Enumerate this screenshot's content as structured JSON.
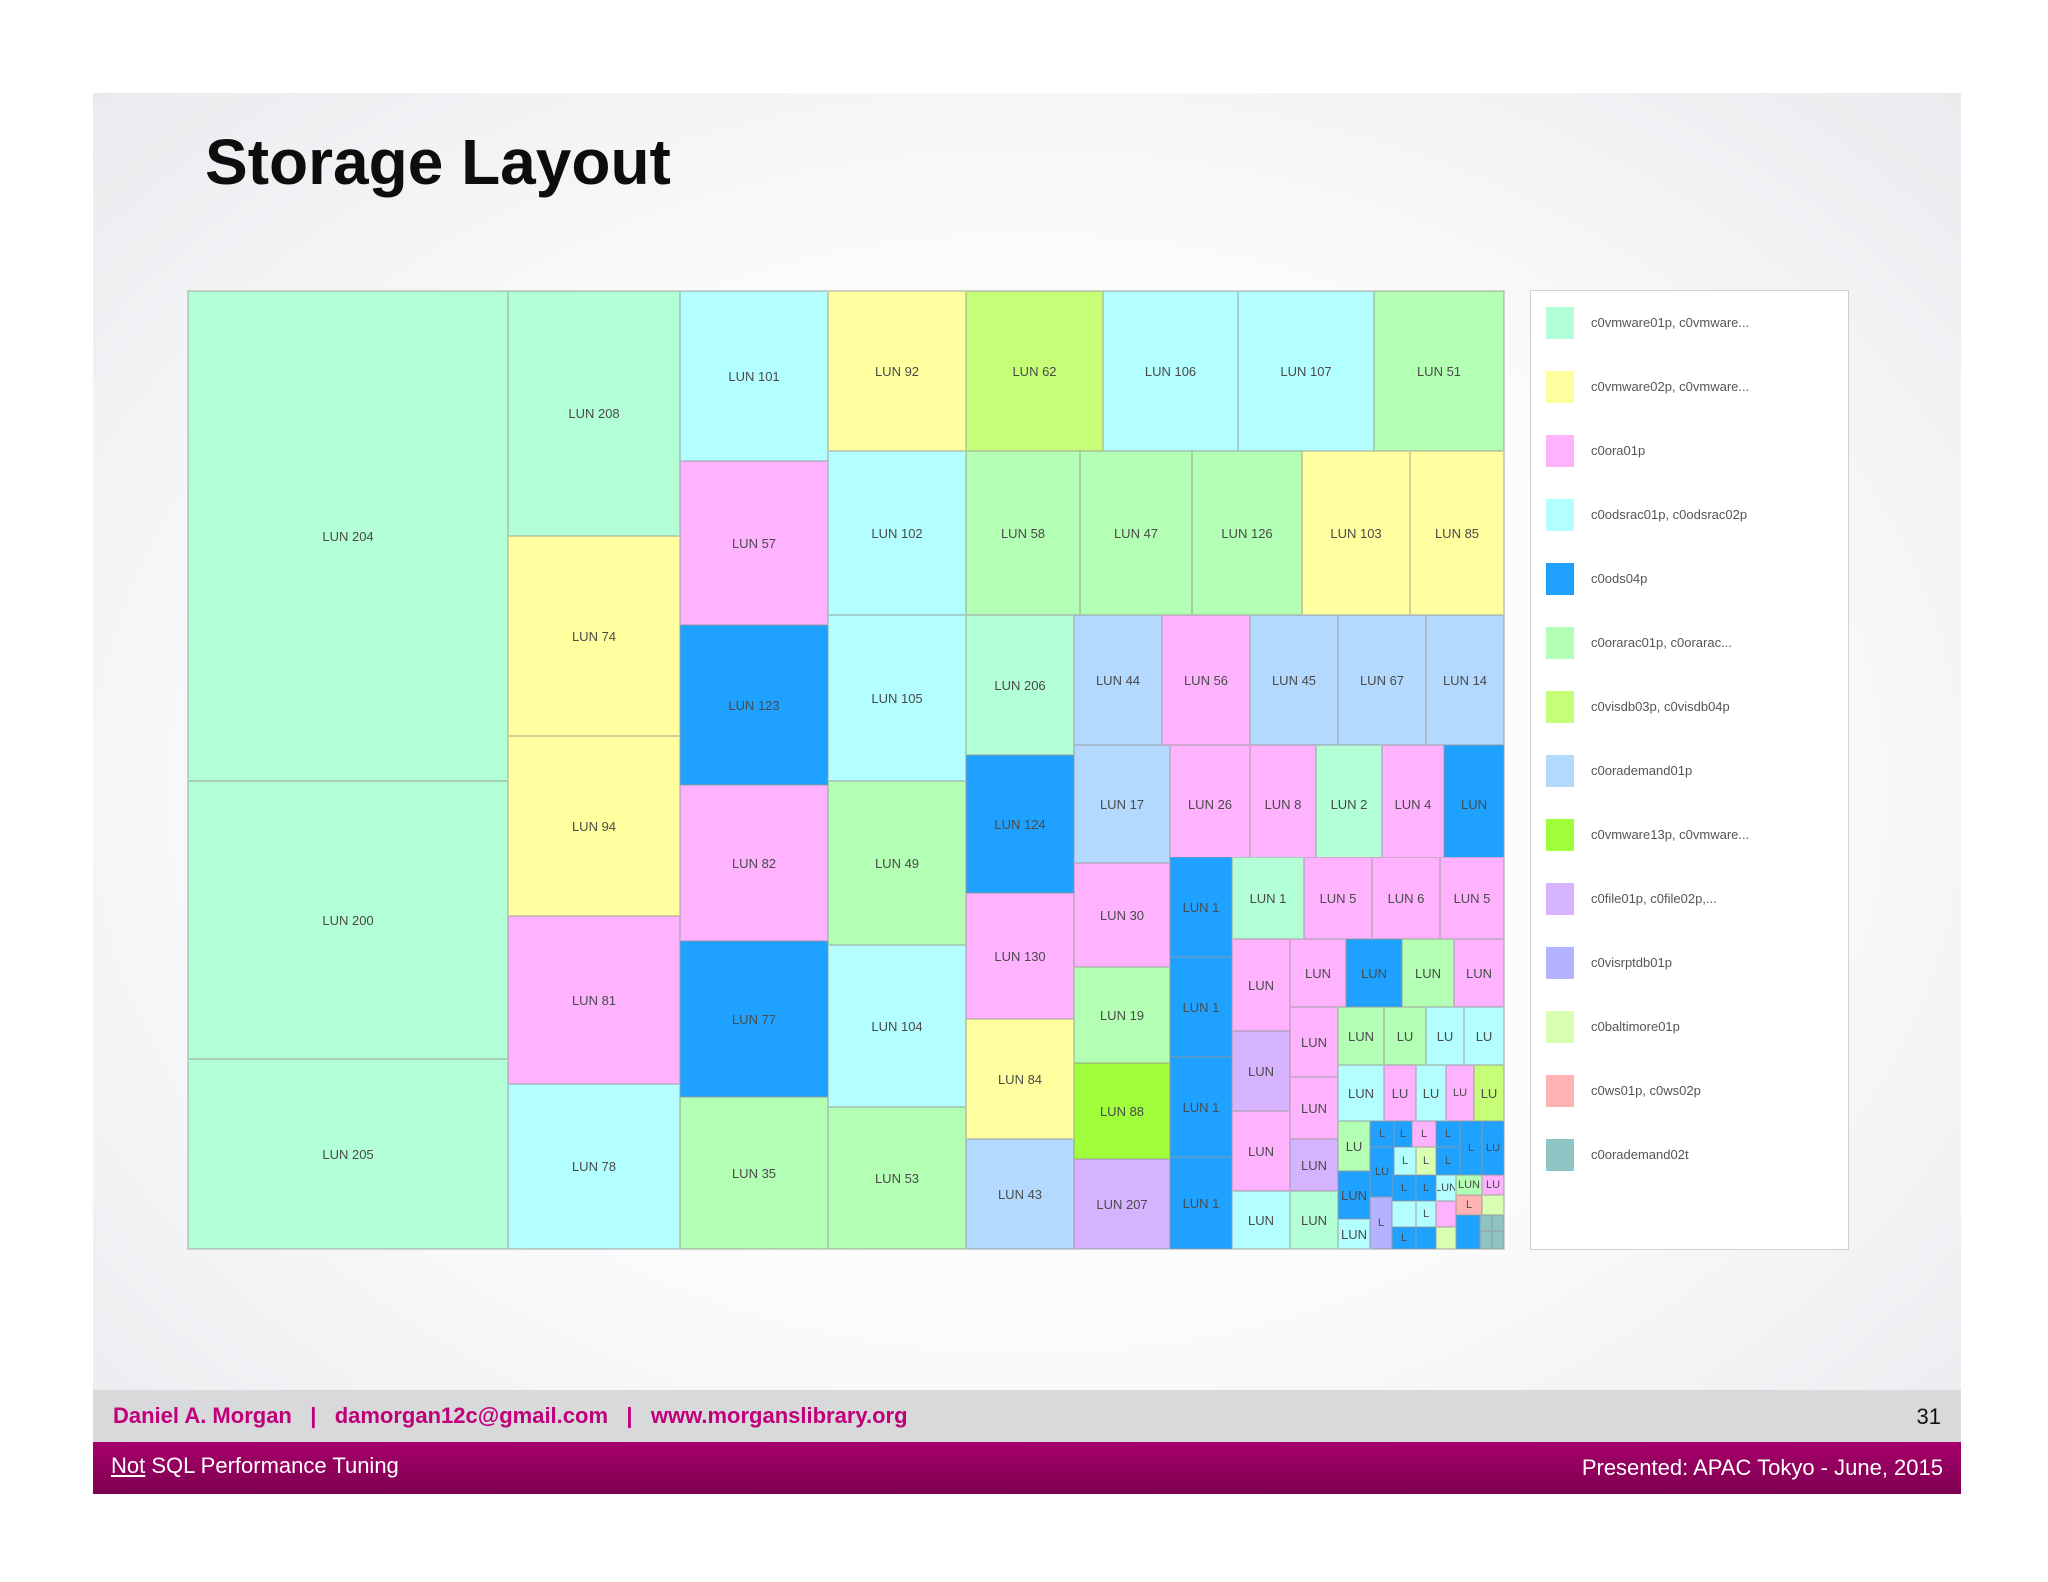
{
  "slide": {
    "title": "Storage Layout",
    "footer": {
      "author_line": "Daniel A. Morgan   |   damorgan12c@gmail.com   |   www.morganslibrary.org",
      "page_number": "31",
      "deck_title_prefix": "Not",
      "deck_title_rest": " SQL Performance Tuning",
      "presented": "Presented: APAC Tokyo  - June, 2015"
    }
  },
  "colors": {
    "c0vmware01p": "#b3ffd6",
    "c0vmware02p": "#ffff9f",
    "c0ora01p": "#ffb3ff",
    "c0odsrac": "#b3ffff",
    "c0ods04p": "#1fa2ff",
    "c0orarac": "#b3ffb3",
    "c0visdb": "#c6ff77",
    "c0orademand01p": "#b3d9ff",
    "c0vmware13p": "#a0ff3a",
    "c0file": "#d6b3ff",
    "c0visrptdb01p": "#b3b3ff",
    "c0baltimore01p": "#d9ffb3",
    "c0ws": "#ffb3b3",
    "c0orademand02t": "#8fc4c4"
  },
  "chart_data": {
    "type": "treemap",
    "title": "Storage Layout",
    "legend_position": "right",
    "legend": [
      {
        "label": "c0vmware01p, c0vmware...",
        "key": "c0vmware01p"
      },
      {
        "label": "c0vmware02p, c0vmware...",
        "key": "c0vmware02p"
      },
      {
        "label": "c0ora01p",
        "key": "c0ora01p"
      },
      {
        "label": "c0odsrac01p, c0odsrac02p",
        "key": "c0odsrac"
      },
      {
        "label": "c0ods04p",
        "key": "c0ods04p"
      },
      {
        "label": "c0orarac01p, c0orarac...",
        "key": "c0orarac"
      },
      {
        "label": "c0visdb03p, c0visdb04p",
        "key": "c0visdb"
      },
      {
        "label": "c0orademand01p",
        "key": "c0orademand01p"
      },
      {
        "label": "c0vmware13p, c0vmware...",
        "key": "c0vmware13p"
      },
      {
        "label": "c0file01p, c0file02p,...",
        "key": "c0file"
      },
      {
        "label": "c0visrptdb01p",
        "key": "c0visrptdb01p"
      },
      {
        "label": "c0baltimore01p",
        "key": "c0baltimore01p"
      },
      {
        "label": "c0ws01p, c0ws02p",
        "key": "c0ws"
      },
      {
        "label": "c0orademand02t",
        "key": "c0orademand02t"
      }
    ],
    "tiles": [
      {
        "label": "LUN 204",
        "group": "c0vmware01p"
      },
      {
        "label": "LUN 200",
        "group": "c0vmware01p"
      },
      {
        "label": "LUN 205",
        "group": "c0vmware01p"
      },
      {
        "label": "LUN 208",
        "group": "c0vmware01p"
      },
      {
        "label": "LUN 74",
        "group": "c0vmware02p"
      },
      {
        "label": "LUN 94",
        "group": "c0vmware02p"
      },
      {
        "label": "LUN 81",
        "group": "c0ora01p"
      },
      {
        "label": "LUN 78",
        "group": "c0odsrac"
      },
      {
        "label": "LUN 101",
        "group": "c0odsrac"
      },
      {
        "label": "LUN 57",
        "group": "c0ora01p"
      },
      {
        "label": "LUN 123",
        "group": "c0ods04p"
      },
      {
        "label": "LUN 82",
        "group": "c0ora01p"
      },
      {
        "label": "LUN 77",
        "group": "c0ods04p"
      },
      {
        "label": "LUN 35",
        "group": "c0orarac"
      },
      {
        "label": "LUN 92",
        "group": "c0vmware02p"
      },
      {
        "label": "LUN 102",
        "group": "c0odsrac"
      },
      {
        "label": "LUN 105",
        "group": "c0odsrac"
      },
      {
        "label": "LUN 49",
        "group": "c0orarac"
      },
      {
        "label": "LUN 104",
        "group": "c0odsrac"
      },
      {
        "label": "LUN 53",
        "group": "c0orarac"
      },
      {
        "label": "LUN 62",
        "group": "c0visdb"
      },
      {
        "label": "LUN 106",
        "group": "c0odsrac"
      },
      {
        "label": "LUN 107",
        "group": "c0odsrac"
      },
      {
        "label": "LUN 51",
        "group": "c0orarac"
      },
      {
        "label": "LUN 58",
        "group": "c0orarac"
      },
      {
        "label": "LUN 47",
        "group": "c0orarac"
      },
      {
        "label": "LUN 126",
        "group": "c0orarac"
      },
      {
        "label": "LUN 103",
        "group": "c0vmware02p"
      },
      {
        "label": "LUN 85",
        "group": "c0vmware02p"
      },
      {
        "label": "LUN 206",
        "group": "c0vmware01p"
      },
      {
        "label": "LUN 124",
        "group": "c0ods04p"
      },
      {
        "label": "LUN 130",
        "group": "c0ora01p"
      },
      {
        "label": "LUN 84",
        "group": "c0vmware02p"
      },
      {
        "label": "LUN 43",
        "group": "c0orademand01p"
      },
      {
        "label": "LUN 44",
        "group": "c0orademand01p"
      },
      {
        "label": "LUN 56",
        "group": "c0ora01p"
      },
      {
        "label": "LUN 45",
        "group": "c0orademand01p"
      },
      {
        "label": "LUN 67",
        "group": "c0orademand01p"
      },
      {
        "label": "LUN 14",
        "group": "c0orademand01p"
      },
      {
        "label": "LUN 17",
        "group": "c0orademand01p"
      },
      {
        "label": "LUN 26",
        "group": "c0ora01p"
      },
      {
        "label": "LUN 8",
        "group": "c0ora01p"
      },
      {
        "label": "LUN 2",
        "group": "c0vmware01p"
      },
      {
        "label": "LUN 4",
        "group": "c0ora01p"
      },
      {
        "label": "LUN",
        "group": "c0ods04p"
      },
      {
        "label": "LUN 30",
        "group": "c0ora01p"
      },
      {
        "label": "LUN 19",
        "group": "c0orarac"
      },
      {
        "label": "LUN 88",
        "group": "c0vmware13p"
      },
      {
        "label": "LUN 207",
        "group": "c0file"
      },
      {
        "label": "LUN 1",
        "group": "c0ods04p"
      },
      {
        "label": "LUN 1",
        "group": "c0ods04p"
      },
      {
        "label": "LUN 1",
        "group": "c0ods04p"
      },
      {
        "label": "LUN 1",
        "group": "c0ods04p"
      },
      {
        "label": "LUN 1",
        "group": "c0vmware01p"
      },
      {
        "label": "LUN 5",
        "group": "c0ora01p"
      },
      {
        "label": "LUN 6",
        "group": "c0ora01p"
      },
      {
        "label": "LUN 5",
        "group": "c0ora01p"
      },
      {
        "label": "LUN",
        "group": "c0ora01p"
      },
      {
        "label": "LUN",
        "group": "c0ora01p"
      },
      {
        "label": "LUN",
        "group": "c0ods04p"
      },
      {
        "label": "LUN",
        "group": "c0orarac"
      },
      {
        "label": "LUN",
        "group": "c0ora01p"
      },
      {
        "label": "LUN",
        "group": "c0file"
      },
      {
        "label": "LUN",
        "group": "c0ora01p"
      },
      {
        "label": "LUN",
        "group": "c0orarac"
      },
      {
        "label": "LU",
        "group": "c0orarac"
      },
      {
        "label": "LU",
        "group": "c0odsrac"
      },
      {
        "label": "LU",
        "group": "c0odsrac"
      },
      {
        "label": "LUN",
        "group": "c0ora01p"
      },
      {
        "label": "LUN",
        "group": "c0odsrac"
      },
      {
        "label": "LU",
        "group": "c0ora01p"
      },
      {
        "label": "LU",
        "group": "c0odsrac"
      },
      {
        "label": "LU",
        "group": "c0ora01p"
      },
      {
        "label": "LU",
        "group": "c0visdb"
      },
      {
        "label": "LUN",
        "group": "c0ora01p"
      },
      {
        "label": "LUN",
        "group": "c0file"
      },
      {
        "label": "LU",
        "group": "c0orarac"
      },
      {
        "label": "L",
        "group": "c0ods04p"
      },
      {
        "label": "L",
        "group": "c0ods04p"
      },
      {
        "label": "L",
        "group": "c0ora01p"
      },
      {
        "label": "L",
        "group": "c0ods04p"
      },
      {
        "label": "LUN",
        "group": "c0odsrac"
      },
      {
        "label": "LUN",
        "group": "c0vmware01p"
      },
      {
        "label": "LUN",
        "group": "c0ods04p"
      },
      {
        "label": "LU",
        "group": "c0ods04p"
      },
      {
        "label": "L",
        "group": "c0odsrac"
      },
      {
        "label": "L",
        "group": "c0baltimore01p"
      },
      {
        "label": "L",
        "group": "c0ods04p"
      },
      {
        "label": "L",
        "group": "c0ods04p"
      },
      {
        "label": "LU",
        "group": "c0ods04p"
      },
      {
        "label": "L",
        "group": "c0visrptdb01p"
      },
      {
        "label": "L",
        "group": "c0ods04p"
      },
      {
        "label": "L",
        "group": "c0ods04p"
      },
      {
        "label": "LUN",
        "group": "c0odsrac"
      },
      {
        "label": "LUN",
        "group": "c0odsrac"
      },
      {
        "label": "LUN",
        "group": "c0orarac"
      },
      {
        "label": "LU",
        "group": "c0ora01p"
      },
      {
        "label": "L",
        "group": "c0odsrac"
      },
      {
        "label": "L",
        "group": "c0ods04p"
      },
      {
        "label": "L",
        "group": "c0ws"
      },
      {
        "label": "",
        "group": "c0baltimore01p"
      },
      {
        "label": "",
        "group": "c0ora01p"
      },
      {
        "label": "",
        "group": "c0ods04p"
      },
      {
        "label": "",
        "group": "c0ods04p"
      },
      {
        "label": "",
        "group": "c0orademand02t"
      },
      {
        "label": "",
        "group": "c0orademand02t"
      },
      {
        "label": "",
        "group": "c0orademand02t"
      },
      {
        "label": "",
        "group": "c0orademand02t"
      },
      {
        "label": "",
        "group": "c0baltimore01p"
      },
      {
        "label": "",
        "group": "c0odsrac"
      }
    ]
  }
}
